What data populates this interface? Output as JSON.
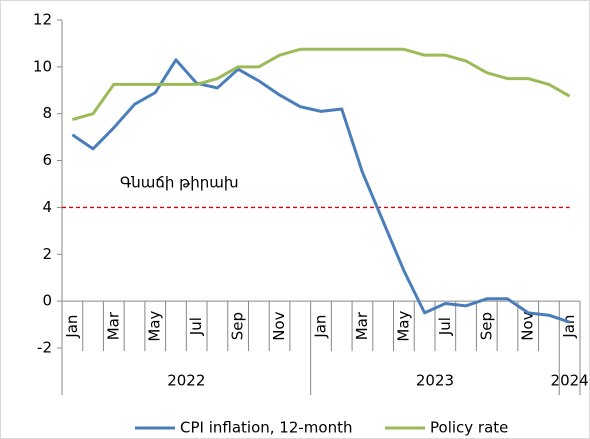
{
  "chart_data": {
    "type": "line",
    "categories": [
      "Jan",
      null,
      "Mar",
      null,
      "May",
      null,
      "Jul",
      null,
      "Sep",
      null,
      "Nov",
      null,
      "Jan",
      null,
      "Mar",
      null,
      "May",
      null,
      "Jul",
      null,
      "Sep",
      null,
      "Nov",
      null,
      "Jan"
    ],
    "years": [
      "2022",
      "2023",
      "2024"
    ],
    "series": [
      {
        "name": "CPI inflation, 12-month",
        "color": "#4a7ebb",
        "values": [
          7.1,
          6.5,
          7.4,
          8.4,
          8.9,
          10.3,
          9.3,
          9.1,
          9.9,
          9.4,
          8.8,
          8.3,
          8.1,
          8.2,
          5.5,
          3.4,
          1.3,
          -0.5,
          -0.1,
          -0.2,
          0.1,
          0.1,
          -0.5,
          -0.6,
          -0.9
        ]
      },
      {
        "name": "Policy rate",
        "color": "#9bbb59",
        "values": [
          7.75,
          8.0,
          9.25,
          9.25,
          9.25,
          9.25,
          9.25,
          9.5,
          10.0,
          10.0,
          10.5,
          10.75,
          10.75,
          10.75,
          10.75,
          10.75,
          10.75,
          10.5,
          10.5,
          10.25,
          9.75,
          9.5,
          9.5,
          9.25,
          8.75
        ]
      }
    ],
    "target": {
      "label": "Գնաճի թիրախ",
      "value": 4,
      "color": "#e00000"
    },
    "ylim": [
      -2,
      12
    ],
    "yticks": [
      -2,
      0,
      2,
      4,
      6,
      8,
      10,
      12
    ]
  }
}
